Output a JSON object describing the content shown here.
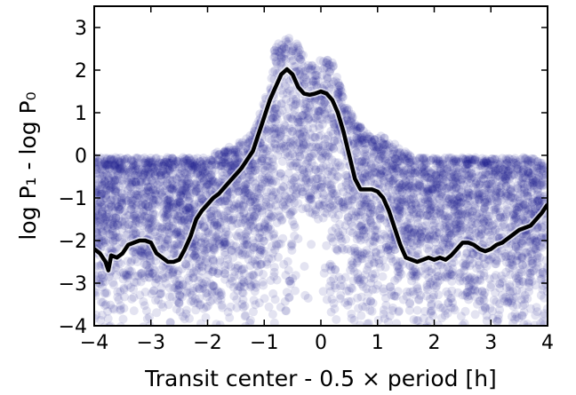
{
  "chart_data": {
    "type": "scatter",
    "title": "",
    "xlabel": "Transit center - 0.5 × period [h]",
    "ylabel": "log P₁ - log P₀",
    "xlim": [
      -4,
      4
    ],
    "ylim": [
      -4,
      3.5
    ],
    "xticks": [
      -4,
      -3,
      -2,
      -1,
      0,
      1,
      2,
      3,
      4
    ],
    "yticks": [
      -4,
      -3,
      -2,
      -1,
      0,
      1,
      2,
      3
    ],
    "xtick_labels": [
      "−4",
      "−3",
      "−2",
      "−1",
      "0",
      "1",
      "2",
      "3",
      "4"
    ],
    "ytick_labels": [
      "−4",
      "−3",
      "−2",
      "−1",
      "0",
      "1",
      "2",
      "3"
    ],
    "grid": false,
    "legend": "none",
    "point_color": "#1a1a8c",
    "point_opacity": 0.12,
    "line_color": "#000000",
    "series": [
      {
        "kind": "scatter-envelope",
        "description_of_density": "dense cloud, upper envelope",
        "x": [
          -4.0,
          -3.0,
          -2.2,
          -2.0,
          -1.6,
          -1.2,
          -1.0,
          -0.8,
          -0.6,
          -0.4,
          -0.2,
          0.0,
          0.2,
          0.4,
          0.6,
          0.8,
          1.0,
          1.3,
          1.6,
          2.0,
          3.0,
          4.0
        ],
        "y": [
          0.0,
          0.0,
          0.0,
          0.0,
          0.2,
          0.5,
          1.3,
          2.6,
          2.8,
          2.6,
          2.1,
          2.3,
          2.2,
          1.4,
          0.8,
          0.6,
          0.5,
          0.3,
          0.0,
          0.0,
          0.0,
          0.0
        ]
      },
      {
        "kind": "line",
        "x": [
          -4.0,
          -3.9,
          -3.8,
          -3.75,
          -3.7,
          -3.6,
          -3.5,
          -3.4,
          -3.3,
          -3.2,
          -3.1,
          -3.0,
          -2.9,
          -2.8,
          -2.7,
          -2.6,
          -2.5,
          -2.4,
          -2.3,
          -2.2,
          -2.1,
          -2.0,
          -1.9,
          -1.8,
          -1.7,
          -1.6,
          -1.5,
          -1.4,
          -1.3,
          -1.2,
          -1.1,
          -1.0,
          -0.9,
          -0.8,
          -0.7,
          -0.6,
          -0.5,
          -0.4,
          -0.3,
          -0.2,
          -0.1,
          0.0,
          0.1,
          0.2,
          0.3,
          0.4,
          0.5,
          0.6,
          0.7,
          0.8,
          0.9,
          1.0,
          1.1,
          1.2,
          1.3,
          1.4,
          1.5,
          1.6,
          1.7,
          1.8,
          1.9,
          2.0,
          2.1,
          2.2,
          2.3,
          2.4,
          2.5,
          2.6,
          2.7,
          2.8,
          2.9,
          3.0,
          3.1,
          3.2,
          3.3,
          3.4,
          3.5,
          3.6,
          3.7,
          3.8,
          3.9,
          4.0
        ],
        "y": [
          -2.2,
          -2.3,
          -2.5,
          -2.7,
          -2.35,
          -2.4,
          -2.3,
          -2.1,
          -2.05,
          -2.0,
          -2.0,
          -2.05,
          -2.3,
          -2.4,
          -2.5,
          -2.5,
          -2.45,
          -2.2,
          -1.9,
          -1.5,
          -1.3,
          -1.15,
          -1.0,
          -0.9,
          -0.75,
          -0.6,
          -0.45,
          -0.3,
          -0.1,
          0.1,
          0.5,
          0.9,
          1.3,
          1.6,
          1.9,
          2.02,
          1.9,
          1.6,
          1.45,
          1.42,
          1.45,
          1.5,
          1.45,
          1.3,
          1.0,
          0.55,
          0.0,
          -0.55,
          -0.8,
          -0.8,
          -0.8,
          -0.85,
          -1.0,
          -1.3,
          -1.7,
          -2.1,
          -2.4,
          -2.45,
          -2.5,
          -2.45,
          -2.4,
          -2.45,
          -2.4,
          -2.45,
          -2.35,
          -2.2,
          -2.05,
          -2.05,
          -2.1,
          -2.2,
          -2.25,
          -2.2,
          -2.1,
          -2.05,
          -1.95,
          -1.85,
          -1.75,
          -1.7,
          -1.65,
          -1.5,
          -1.35,
          -1.15
        ]
      }
    ]
  }
}
